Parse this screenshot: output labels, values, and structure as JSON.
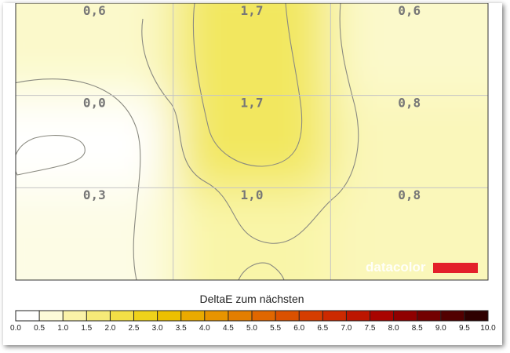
{
  "chart_data": {
    "type": "heatmap",
    "title": "",
    "rows": 3,
    "cols": 3,
    "cells": [
      [
        "0,6",
        "1,7",
        "0,6"
      ],
      [
        "0,0",
        "1,7",
        "0,8"
      ],
      [
        "0,3",
        "1,0",
        "0,8"
      ]
    ],
    "values": [
      [
        0.6,
        1.7,
        0.6
      ],
      [
        0.0,
        1.7,
        0.8
      ],
      [
        0.3,
        1.0,
        0.8
      ]
    ],
    "grid": true,
    "contours": true,
    "colorbar": {
      "title": "DeltaE zum nächsten",
      "min": 0.0,
      "max": 10.0,
      "ticks": [
        "0.0",
        "0.5",
        "1.0",
        "1.5",
        "2.0",
        "2.5",
        "3.0",
        "3.5",
        "4.0",
        "4.5",
        "5.0",
        "5.5",
        "6.0",
        "6.5",
        "7.0",
        "7.5",
        "8.0",
        "8.5",
        "9.0",
        "9.5",
        "10.0"
      ],
      "colors": [
        "#ffffff",
        "#fdfbd8",
        "#faf2a8",
        "#f6ea78",
        "#f3df46",
        "#efd21a",
        "#ecc000",
        "#eaaa00",
        "#e89400",
        "#e47e00",
        "#e06700",
        "#db5100",
        "#d53d00",
        "#cc2a00",
        "#bd1600",
        "#a90400",
        "#900000",
        "#730000",
        "#520000",
        "#2e0000"
      ]
    },
    "watermark": "datacolor"
  }
}
